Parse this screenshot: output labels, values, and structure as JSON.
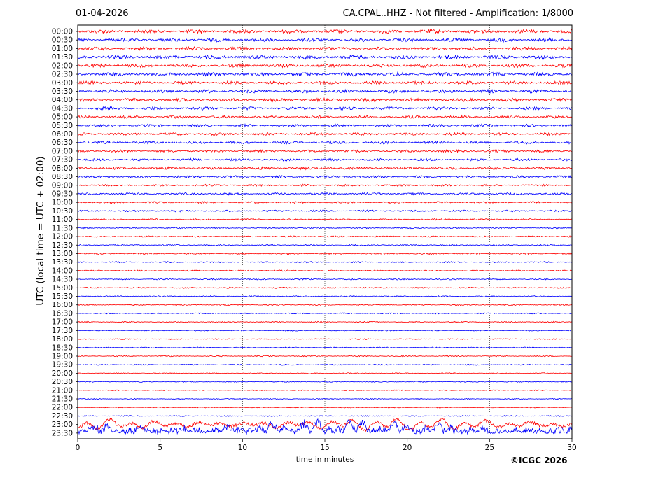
{
  "header": {
    "date": "01-04-2026",
    "title": "CA.CPAL..HHZ - Not filtered - Amplification: 1/8000"
  },
  "copyright": "©ICGC 2026",
  "colors": {
    "red": "#ff0000",
    "blue": "#0000ff",
    "grid": "#000000"
  },
  "chart_data": {
    "type": "line",
    "title": "CA.CPAL..HHZ - Not filtered - Amplification: 1/8000",
    "xlabel": "time in minutes",
    "ylabel": "UTC (local time = UTC + 02:00)",
    "xlim": [
      0,
      30
    ],
    "x_ticks": [
      "0",
      "5",
      "10",
      "15",
      "20",
      "25",
      "30"
    ],
    "x_grid_minutes": [
      5,
      10,
      15,
      20,
      25
    ],
    "grid": "vertical dotted",
    "row_labels": [
      "00:00",
      "00:30",
      "01:00",
      "01:30",
      "02:00",
      "02:30",
      "03:00",
      "03:30",
      "04:00",
      "04:30",
      "05:00",
      "05:30",
      "06:00",
      "06:30",
      "07:00",
      "07:30",
      "08:00",
      "08:30",
      "09:00",
      "09:30",
      "10:00",
      "10:30",
      "11:00",
      "11:30",
      "12:00",
      "12:30",
      "13:00",
      "13:30",
      "14:00",
      "14:30",
      "15:00",
      "15:30",
      "16:00",
      "16:30",
      "17:00",
      "17:30",
      "18:00",
      "18:30",
      "19:00",
      "19:30",
      "20:00",
      "20:30",
      "21:00",
      "21:30",
      "22:00",
      "22:30",
      "23:00",
      "23:30"
    ],
    "row_colors": [
      "red",
      "blue"
    ],
    "row_amplitude": [
      0.4,
      0.38,
      0.36,
      0.42,
      0.38,
      0.4,
      0.34,
      0.36,
      0.36,
      0.34,
      0.3,
      0.28,
      0.3,
      0.3,
      0.28,
      0.26,
      0.3,
      0.26,
      0.22,
      0.24,
      0.2,
      0.2,
      0.16,
      0.14,
      0.16,
      0.16,
      0.16,
      0.14,
      0.14,
      0.14,
      0.14,
      0.14,
      0.13,
      0.12,
      0.12,
      0.12,
      0.12,
      0.12,
      0.12,
      0.12,
      0.11,
      0.11,
      0.1,
      0.1,
      0.1,
      0.12,
      0.9,
      1.8
    ]
  }
}
